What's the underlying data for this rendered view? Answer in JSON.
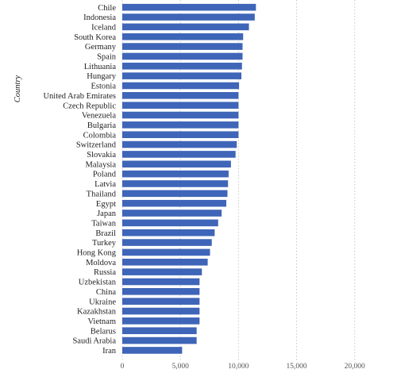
{
  "chart_data": {
    "type": "bar",
    "orientation": "horizontal",
    "ylabel": "Country",
    "xlabel": "",
    "xlim": [
      0,
      22000
    ],
    "x_ticks": [
      0,
      5000,
      10000,
      15000,
      20000
    ],
    "x_tick_labels": [
      "0",
      "5,000",
      "10,000",
      "15,000",
      "20,000"
    ],
    "grid": "vertical-dotted",
    "bar_color": "#3f65b8",
    "categories": [
      "Chile",
      "Indonesia",
      "Iceland",
      "South Korea",
      "Germany",
      "Spain",
      "Lithuania",
      "Hungary",
      "Estonia",
      "United Arab Emirates",
      "Czech Republic",
      "Venezuela",
      "Bulgaria",
      "Colombia",
      "Switzerland",
      "Slovakia",
      "Malaysia",
      "Poland",
      "Latvia",
      "Thailand",
      "Egypt",
      "Japan",
      "Taiwan",
      "Brazil",
      "Turkey",
      "Hong Kong",
      "Moldova",
      "Russia",
      "Uzbekistan",
      "China",
      "Ukraine",
      "Kazakhstan",
      "Vietnam",
      "Belarus",
      "Saudi Arabia",
      "Iran"
    ],
    "values": [
      11500,
      11400,
      10900,
      10400,
      10350,
      10350,
      10300,
      10250,
      10050,
      10000,
      10000,
      10000,
      10000,
      10000,
      9850,
      9750,
      9350,
      9150,
      9100,
      9050,
      8950,
      8550,
      8250,
      7950,
      7700,
      7550,
      7350,
      6850,
      6650,
      6650,
      6650,
      6650,
      6650,
      6400,
      6400,
      5150
    ]
  }
}
